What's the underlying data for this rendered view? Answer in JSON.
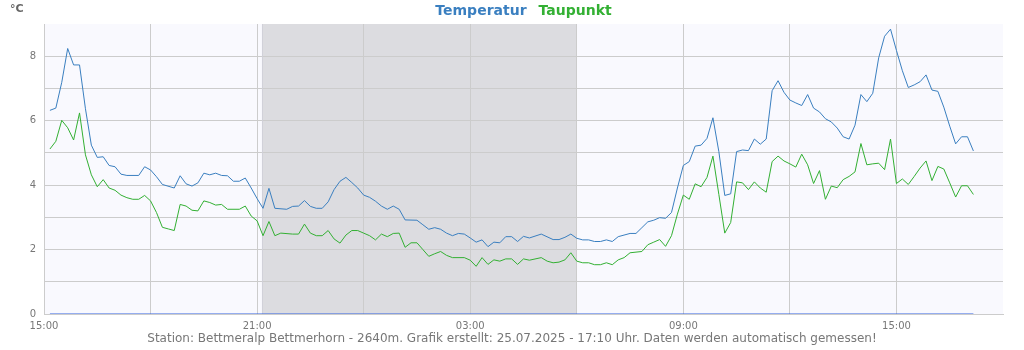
{
  "chart_data": {
    "type": "line",
    "ylabel": "°C",
    "legend": "top",
    "grid": true,
    "xlim": [
      "2025-07-24T15:00",
      "2025-07-25T18:00"
    ],
    "xticks": [
      {
        "value": "2025-07-24T15:00",
        "label": "15:00"
      },
      {
        "value": "2025-07-24T18:00",
        "label": null
      },
      {
        "value": "2025-07-24T21:00",
        "label": "21:00"
      },
      {
        "value": "2025-07-25T00:00",
        "label": null
      },
      {
        "value": "2025-07-25T03:00",
        "label": "03:00"
      },
      {
        "value": "2025-07-25T06:00",
        "label": null
      },
      {
        "value": "2025-07-25T09:00",
        "label": "09:00"
      },
      {
        "value": "2025-07-25T12:00",
        "label": null
      },
      {
        "value": "2025-07-25T15:00",
        "label": "15:00"
      }
    ],
    "ylim": [
      0,
      9
    ],
    "yticks": [
      0,
      {
        "value": 1,
        "label": null
      },
      2,
      {
        "value": 3,
        "label": null
      },
      4,
      {
        "value": 5,
        "label": null
      },
      6,
      {
        "value": 7,
        "label": null
      },
      8
    ],
    "bands": [
      {
        "axis": "x",
        "from": "2025-07-24T21:09",
        "to": "2025-07-25T06:00",
        "color": "#dcdce0"
      }
    ],
    "ref_lines": [
      {
        "axis": "x",
        "value": "2025-07-24T21:09",
        "color": "#d0d0d8"
      }
    ],
    "annotations": [
      "Station: Bettmeralp Bettmerhorn - 2640m. Grafik erstellt: 25.07.2025 - 17:10 Uhr. Daten werden automatisch gemessen!"
    ],
    "series": [
      {
        "name": "Temperatur",
        "color": "#3a7fc0",
        "x": [
          "2025-07-24T15:10",
          "2025-07-24T15:20",
          "2025-07-24T15:30",
          "2025-07-24T15:40",
          "2025-07-24T15:50",
          "2025-07-24T16:00",
          "2025-07-24T16:10",
          "2025-07-24T16:20",
          "2025-07-24T16:30",
          "2025-07-24T16:40",
          "2025-07-24T16:50",
          "2025-07-24T17:00",
          "2025-07-24T17:10",
          "2025-07-24T17:20",
          "2025-07-24T17:40",
          "2025-07-24T17:50",
          "2025-07-24T18:00",
          "2025-07-24T18:10",
          "2025-07-24T18:20",
          "2025-07-24T18:40",
          "2025-07-24T18:50",
          "2025-07-24T19:00",
          "2025-07-24T19:10",
          "2025-07-24T19:20",
          "2025-07-24T19:30",
          "2025-07-24T19:40",
          "2025-07-24T19:50",
          "2025-07-24T20:00",
          "2025-07-24T20:10",
          "2025-07-24T20:20",
          "2025-07-24T20:30",
          "2025-07-24T20:40",
          "2025-07-24T20:50",
          "2025-07-24T21:00",
          "2025-07-24T21:10",
          "2025-07-24T21:20",
          "2025-07-24T21:30",
          "2025-07-24T21:50",
          "2025-07-24T22:00",
          "2025-07-24T22:10",
          "2025-07-24T22:20",
          "2025-07-24T22:30",
          "2025-07-24T22:40",
          "2025-07-24T22:50",
          "2025-07-24T23:00",
          "2025-07-24T23:10",
          "2025-07-24T23:20",
          "2025-07-24T23:30",
          "2025-07-24T23:40",
          "2025-07-24T23:50",
          "2025-07-25T00:00",
          "2025-07-25T00:10",
          "2025-07-25T00:20",
          "2025-07-25T00:30",
          "2025-07-25T00:40",
          "2025-07-25T00:50",
          "2025-07-25T01:00",
          "2025-07-25T01:10",
          "2025-07-25T01:30",
          "2025-07-25T01:40",
          "2025-07-25T01:50",
          "2025-07-25T02:00",
          "2025-07-25T02:10",
          "2025-07-25T02:20",
          "2025-07-25T02:30",
          "2025-07-25T02:40",
          "2025-07-25T02:50",
          "2025-07-25T03:00",
          "2025-07-25T03:10",
          "2025-07-25T03:20",
          "2025-07-25T03:30",
          "2025-07-25T03:40",
          "2025-07-25T03:50",
          "2025-07-25T04:00",
          "2025-07-25T04:10",
          "2025-07-25T04:20",
          "2025-07-25T04:30",
          "2025-07-25T04:40",
          "2025-07-25T05:00",
          "2025-07-25T05:20",
          "2025-07-25T05:30",
          "2025-07-25T05:40",
          "2025-07-25T05:50",
          "2025-07-25T06:00",
          "2025-07-25T06:10",
          "2025-07-25T06:20",
          "2025-07-25T06:30",
          "2025-07-25T06:40",
          "2025-07-25T06:50",
          "2025-07-25T07:00",
          "2025-07-25T07:10",
          "2025-07-25T07:30",
          "2025-07-25T07:40",
          "2025-07-25T07:50",
          "2025-07-25T08:00",
          "2025-07-25T08:10",
          "2025-07-25T08:20",
          "2025-07-25T08:30",
          "2025-07-25T08:40",
          "2025-07-25T08:50",
          "2025-07-25T09:00",
          "2025-07-25T09:10",
          "2025-07-25T09:20",
          "2025-07-25T09:30",
          "2025-07-25T09:40",
          "2025-07-25T09:50",
          "2025-07-25T10:00",
          "2025-07-25T10:10",
          "2025-07-25T10:20",
          "2025-07-25T10:30",
          "2025-07-25T10:40",
          "2025-07-25T10:50",
          "2025-07-25T11:00",
          "2025-07-25T11:10",
          "2025-07-25T11:20",
          "2025-07-25T11:30",
          "2025-07-25T11:40",
          "2025-07-25T11:50",
          "2025-07-25T12:00",
          "2025-07-25T12:10",
          "2025-07-25T12:20",
          "2025-07-25T12:30",
          "2025-07-25T12:40",
          "2025-07-25T12:50",
          "2025-07-25T13:00",
          "2025-07-25T13:10",
          "2025-07-25T13:20",
          "2025-07-25T13:30",
          "2025-07-25T13:40",
          "2025-07-25T13:50",
          "2025-07-25T14:00",
          "2025-07-25T14:10",
          "2025-07-25T14:20",
          "2025-07-25T14:30",
          "2025-07-25T14:40",
          "2025-07-25T14:50",
          "2025-07-25T15:00",
          "2025-07-25T15:10",
          "2025-07-25T15:20",
          "2025-07-25T15:30",
          "2025-07-25T15:40",
          "2025-07-25T15:50",
          "2025-07-25T16:00",
          "2025-07-25T16:10",
          "2025-07-25T16:20",
          "2025-07-25T16:30",
          "2025-07-25T16:40",
          "2025-07-25T16:50",
          "2025-07-25T17:00",
          "2025-07-25T17:10"
        ],
        "values": [
          6.32,
          6.39,
          7.19,
          8.24,
          7.73,
          7.73,
          6.37,
          5.24,
          4.86,
          4.88,
          4.61,
          4.57,
          4.34,
          4.3,
          4.3,
          4.57,
          4.47,
          4.26,
          4.02,
          3.91,
          4.29,
          4.04,
          3.97,
          4.07,
          4.37,
          4.32,
          4.37,
          4.3,
          4.29,
          4.12,
          4.12,
          4.22,
          3.91,
          3.58,
          3.28,
          3.9,
          3.28,
          3.25,
          3.34,
          3.35,
          3.52,
          3.34,
          3.28,
          3.28,
          3.48,
          3.86,
          4.12,
          4.24,
          4.08,
          3.91,
          3.69,
          3.62,
          3.5,
          3.35,
          3.25,
          3.35,
          3.25,
          2.92,
          2.91,
          2.77,
          2.63,
          2.68,
          2.63,
          2.51,
          2.43,
          2.5,
          2.48,
          2.36,
          2.23,
          2.3,
          2.09,
          2.23,
          2.21,
          2.4,
          2.4,
          2.25,
          2.41,
          2.36,
          2.48,
          2.31,
          2.31,
          2.38,
          2.48,
          2.35,
          2.3,
          2.3,
          2.25,
          2.25,
          2.3,
          2.25,
          2.4,
          2.5,
          2.5,
          2.68,
          2.86,
          2.91,
          2.99,
          2.97,
          3.15,
          3.91,
          4.61,
          4.73,
          5.21,
          5.24,
          5.45,
          6.09,
          5.04,
          3.68,
          3.73,
          5.04,
          5.09,
          5.07,
          5.43,
          5.27,
          5.43,
          6.93,
          7.24,
          6.88,
          6.64,
          6.55,
          6.47,
          6.81,
          6.39,
          6.27,
          6.06,
          5.96,
          5.77,
          5.5,
          5.43,
          5.86,
          6.81,
          6.59,
          6.85,
          7.95,
          8.62,
          8.84,
          8.18,
          7.55,
          7.03,
          7.11,
          7.21,
          7.42,
          6.95,
          6.91,
          6.42,
          5.83,
          5.28,
          5.5,
          5.5,
          5.06
        ]
      },
      {
        "name": "Taupunkt",
        "color": "#33b033",
        "x": [
          "2025-07-24T15:10",
          "2025-07-24T15:20",
          "2025-07-24T15:30",
          "2025-07-24T15:40",
          "2025-07-24T15:50",
          "2025-07-24T16:00",
          "2025-07-24T16:10",
          "2025-07-24T16:20",
          "2025-07-24T16:30",
          "2025-07-24T16:40",
          "2025-07-24T16:50",
          "2025-07-24T17:00",
          "2025-07-24T17:10",
          "2025-07-24T17:20",
          "2025-07-24T17:30",
          "2025-07-24T17:40",
          "2025-07-24T17:50",
          "2025-07-24T18:00",
          "2025-07-24T18:10",
          "2025-07-24T18:20",
          "2025-07-24T18:30",
          "2025-07-24T18:40",
          "2025-07-24T18:50",
          "2025-07-24T19:00",
          "2025-07-24T19:10",
          "2025-07-24T19:20",
          "2025-07-24T19:30",
          "2025-07-24T19:40",
          "2025-07-24T19:50",
          "2025-07-24T20:00",
          "2025-07-24T20:10",
          "2025-07-24T20:30",
          "2025-07-24T20:40",
          "2025-07-24T20:50",
          "2025-07-24T21:00",
          "2025-07-24T21:10",
          "2025-07-24T21:20",
          "2025-07-24T21:30",
          "2025-07-24T21:40",
          "2025-07-24T22:00",
          "2025-07-24T22:10",
          "2025-07-24T22:20",
          "2025-07-24T22:30",
          "2025-07-24T22:40",
          "2025-07-24T22:50",
          "2025-07-24T23:00",
          "2025-07-24T23:10",
          "2025-07-24T23:20",
          "2025-07-24T23:30",
          "2025-07-24T23:40",
          "2025-07-24T23:50",
          "2025-07-25T00:00",
          "2025-07-25T00:10",
          "2025-07-25T00:20",
          "2025-07-25T00:30",
          "2025-07-25T00:40",
          "2025-07-25T00:50",
          "2025-07-25T01:00",
          "2025-07-25T01:10",
          "2025-07-25T01:20",
          "2025-07-25T01:30",
          "2025-07-25T01:40",
          "2025-07-25T01:50",
          "2025-07-25T02:00",
          "2025-07-25T02:10",
          "2025-07-25T02:20",
          "2025-07-25T02:30",
          "2025-07-25T02:50",
          "2025-07-25T03:00",
          "2025-07-25T03:10",
          "2025-07-25T03:20",
          "2025-07-25T03:30",
          "2025-07-25T03:40",
          "2025-07-25T03:50",
          "2025-07-25T04:00",
          "2025-07-25T04:10",
          "2025-07-25T04:20",
          "2025-07-25T04:30",
          "2025-07-25T04:40",
          "2025-07-25T05:00",
          "2025-07-25T05:10",
          "2025-07-25T05:20",
          "2025-07-25T05:30",
          "2025-07-25T05:40",
          "2025-07-25T05:50",
          "2025-07-25T06:00",
          "2025-07-25T06:10",
          "2025-07-25T06:20",
          "2025-07-25T06:30",
          "2025-07-25T06:40",
          "2025-07-25T06:50",
          "2025-07-25T07:00",
          "2025-07-25T07:10",
          "2025-07-25T07:20",
          "2025-07-25T07:30",
          "2025-07-25T07:50",
          "2025-07-25T08:00",
          "2025-07-25T08:10",
          "2025-07-25T08:20",
          "2025-07-25T08:30",
          "2025-07-25T08:40",
          "2025-07-25T08:50",
          "2025-07-25T09:00",
          "2025-07-25T09:10",
          "2025-07-25T09:20",
          "2025-07-25T09:30",
          "2025-07-25T09:40",
          "2025-07-25T09:50",
          "2025-07-25T10:00",
          "2025-07-25T10:10",
          "2025-07-25T10:20",
          "2025-07-25T10:30",
          "2025-07-25T10:40",
          "2025-07-25T10:50",
          "2025-07-25T11:00",
          "2025-07-25T11:10",
          "2025-07-25T11:20",
          "2025-07-25T11:30",
          "2025-07-25T11:40",
          "2025-07-25T11:50",
          "2025-07-25T12:00",
          "2025-07-25T12:10",
          "2025-07-25T12:20",
          "2025-07-25T12:30",
          "2025-07-25T12:40",
          "2025-07-25T12:50",
          "2025-07-25T13:00",
          "2025-07-25T13:10",
          "2025-07-25T13:20",
          "2025-07-25T13:30",
          "2025-07-25T13:40",
          "2025-07-25T13:50",
          "2025-07-25T14:00",
          "2025-07-25T14:10",
          "2025-07-25T14:20",
          "2025-07-25T14:30",
          "2025-07-25T14:40",
          "2025-07-25T14:50",
          "2025-07-25T15:00",
          "2025-07-25T15:10",
          "2025-07-25T15:20",
          "2025-07-25T15:30",
          "2025-07-25T15:40",
          "2025-07-25T15:50",
          "2025-07-25T16:00",
          "2025-07-25T16:10",
          "2025-07-25T16:20",
          "2025-07-25T16:30",
          "2025-07-25T16:40",
          "2025-07-25T16:50",
          "2025-07-25T17:00",
          "2025-07-25T17:10"
        ],
        "values": [
          5.12,
          5.36,
          6.01,
          5.78,
          5.4,
          6.24,
          4.94,
          4.32,
          3.95,
          4.17,
          3.91,
          3.84,
          3.69,
          3.61,
          3.56,
          3.56,
          3.68,
          3.51,
          3.15,
          2.69,
          2.64,
          2.59,
          3.4,
          3.35,
          3.22,
          3.2,
          3.51,
          3.46,
          3.38,
          3.4,
          3.25,
          3.25,
          3.35,
          3.04,
          2.89,
          2.43,
          2.87,
          2.43,
          2.51,
          2.48,
          2.48,
          2.79,
          2.51,
          2.43,
          2.43,
          2.59,
          2.33,
          2.2,
          2.45,
          2.59,
          2.59,
          2.51,
          2.43,
          2.3,
          2.48,
          2.4,
          2.5,
          2.51,
          2.07,
          2.21,
          2.21,
          2.0,
          1.79,
          1.87,
          1.94,
          1.82,
          1.75,
          1.75,
          1.67,
          1.48,
          1.75,
          1.54,
          1.68,
          1.64,
          1.71,
          1.71,
          1.54,
          1.71,
          1.67,
          1.75,
          1.64,
          1.59,
          1.61,
          1.68,
          1.9,
          1.64,
          1.59,
          1.59,
          1.53,
          1.53,
          1.59,
          1.53,
          1.68,
          1.75,
          1.9,
          1.94,
          2.15,
          2.23,
          2.31,
          2.1,
          2.43,
          3.1,
          3.69,
          3.56,
          4.04,
          3.95,
          4.24,
          4.9,
          3.71,
          2.51,
          2.84,
          4.1,
          4.07,
          3.86,
          4.1,
          3.91,
          3.78,
          4.73,
          4.9,
          4.75,
          4.66,
          4.56,
          4.96,
          4.63,
          4.05,
          4.45,
          3.56,
          3.97,
          3.92,
          4.17,
          4.27,
          4.41,
          5.29,
          4.63,
          4.66,
          4.68,
          4.48,
          5.43,
          4.05,
          4.19,
          4.02,
          4.27,
          4.53,
          4.75,
          4.14,
          4.58,
          4.5,
          4.07,
          3.63,
          3.98,
          3.98,
          3.71
        ]
      },
      {
        "color": "#3060e0",
        "x": [
          "2025-07-24T15:10",
          "2025-07-25T17:10"
        ],
        "values": [
          0,
          0
        ]
      }
    ]
  }
}
